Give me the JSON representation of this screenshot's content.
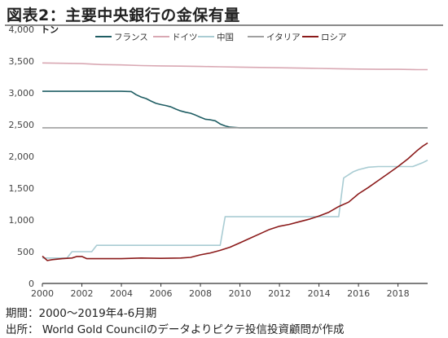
{
  "title": "図表2：主要中央銀行の金保有量",
  "footnotes": {
    "period": "期間：2000～2019年4-6月期",
    "source": "出所： World Gold Councilのデータよりピクテ投信投資顧問が作成"
  },
  "chart_data": {
    "type": "line",
    "unit": "トン",
    "xlim": [
      2000,
      2019.5
    ],
    "ylim": [
      0,
      4000
    ],
    "x_ticks": [
      2000,
      2002,
      2004,
      2006,
      2008,
      2010,
      2012,
      2014,
      2016,
      2018
    ],
    "y_ticks": [
      0,
      500,
      1000,
      1500,
      2000,
      2500,
      3000,
      3500,
      4000
    ],
    "y_tick_labels": [
      "0",
      "500",
      "1,000",
      "1,500",
      "2,000",
      "2,500",
      "3,000",
      "3,500",
      "4,000"
    ],
    "grid": false,
    "legend_position": "top",
    "series": [
      {
        "name": "フランス",
        "color": "#1f5d63",
        "points": [
          [
            2000,
            3025
          ],
          [
            2001,
            3025
          ],
          [
            2002,
            3025
          ],
          [
            2003,
            3025
          ],
          [
            2004,
            3025
          ],
          [
            2004.5,
            3020
          ],
          [
            2004.75,
            2970
          ],
          [
            2005,
            2935
          ],
          [
            2005.25,
            2910
          ],
          [
            2005.5,
            2870
          ],
          [
            2005.75,
            2835
          ],
          [
            2006,
            2815
          ],
          [
            2006.25,
            2800
          ],
          [
            2006.5,
            2780
          ],
          [
            2006.75,
            2745
          ],
          [
            2007,
            2715
          ],
          [
            2007.25,
            2695
          ],
          [
            2007.5,
            2680
          ],
          [
            2007.75,
            2650
          ],
          [
            2008,
            2615
          ],
          [
            2008.25,
            2585
          ],
          [
            2008.5,
            2575
          ],
          [
            2008.75,
            2560
          ],
          [
            2009,
            2510
          ],
          [
            2009.25,
            2480
          ],
          [
            2009.5,
            2460
          ],
          [
            2010,
            2450
          ],
          [
            2012,
            2450
          ],
          [
            2014,
            2450
          ],
          [
            2016,
            2450
          ],
          [
            2018,
            2450
          ],
          [
            2019.5,
            2450
          ]
        ]
      },
      {
        "name": "ドイツ",
        "color": "#d9a8b3",
        "points": [
          [
            2000,
            3470
          ],
          [
            2001,
            3465
          ],
          [
            2002,
            3460
          ],
          [
            2003,
            3445
          ],
          [
            2004,
            3440
          ],
          [
            2005,
            3430
          ],
          [
            2006,
            3425
          ],
          [
            2007,
            3420
          ],
          [
            2008,
            3415
          ],
          [
            2009,
            3410
          ],
          [
            2010,
            3405
          ],
          [
            2011,
            3400
          ],
          [
            2012,
            3395
          ],
          [
            2013,
            3390
          ],
          [
            2014,
            3385
          ],
          [
            2015,
            3380
          ],
          [
            2016,
            3375
          ],
          [
            2017,
            3370
          ],
          [
            2018,
            3370
          ],
          [
            2019,
            3365
          ],
          [
            2019.5,
            3365
          ]
        ]
      },
      {
        "name": "中国",
        "color": "#a9ccd3",
        "points": [
          [
            2000,
            400
          ],
          [
            2001.25,
            400
          ],
          [
            2001.5,
            500
          ],
          [
            2002.5,
            500
          ],
          [
            2002.75,
            600
          ],
          [
            2009,
            600
          ],
          [
            2009.25,
            1050
          ],
          [
            2010,
            1050
          ],
          [
            2012,
            1050
          ],
          [
            2014,
            1050
          ],
          [
            2015,
            1050
          ],
          [
            2015.25,
            1660
          ],
          [
            2015.5,
            1710
          ],
          [
            2015.75,
            1760
          ],
          [
            2016,
            1790
          ],
          [
            2016.5,
            1830
          ],
          [
            2017,
            1840
          ],
          [
            2018,
            1840
          ],
          [
            2018.75,
            1840
          ],
          [
            2019,
            1870
          ],
          [
            2019.25,
            1900
          ],
          [
            2019.5,
            1940
          ]
        ]
      },
      {
        "name": "イタリア",
        "color": "#a0a0a0",
        "points": [
          [
            2000,
            2450
          ],
          [
            2019.5,
            2450
          ]
        ]
      },
      {
        "name": "ロシア",
        "color": "#8b1a1a",
        "points": [
          [
            2000,
            430
          ],
          [
            2000.25,
            360
          ],
          [
            2000.5,
            375
          ],
          [
            2001,
            390
          ],
          [
            2001.5,
            400
          ],
          [
            2001.75,
            425
          ],
          [
            2002,
            425
          ],
          [
            2002.25,
            390
          ],
          [
            2003,
            390
          ],
          [
            2004,
            390
          ],
          [
            2005,
            400
          ],
          [
            2006,
            395
          ],
          [
            2007,
            400
          ],
          [
            2007.5,
            410
          ],
          [
            2008,
            450
          ],
          [
            2008.5,
            480
          ],
          [
            2009,
            520
          ],
          [
            2009.5,
            570
          ],
          [
            2010,
            640
          ],
          [
            2010.5,
            710
          ],
          [
            2011,
            780
          ],
          [
            2011.5,
            850
          ],
          [
            2012,
            900
          ],
          [
            2012.5,
            930
          ],
          [
            2013,
            970
          ],
          [
            2013.5,
            1010
          ],
          [
            2014,
            1060
          ],
          [
            2014.5,
            1120
          ],
          [
            2015,
            1210
          ],
          [
            2015.5,
            1280
          ],
          [
            2016,
            1410
          ],
          [
            2016.5,
            1510
          ],
          [
            2017,
            1620
          ],
          [
            2017.5,
            1730
          ],
          [
            2018,
            1840
          ],
          [
            2018.5,
            1960
          ],
          [
            2019,
            2100
          ],
          [
            2019.25,
            2160
          ],
          [
            2019.5,
            2210
          ]
        ]
      }
    ]
  }
}
